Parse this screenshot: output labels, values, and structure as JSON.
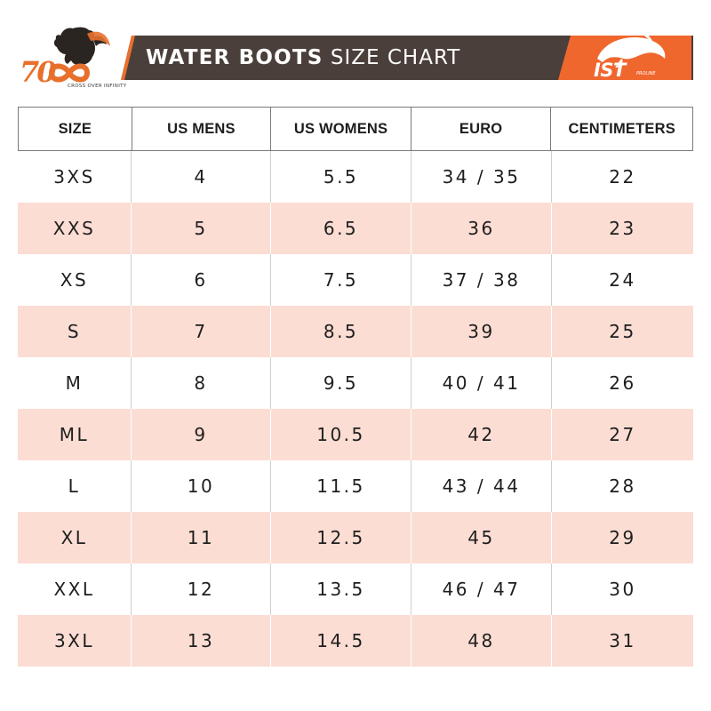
{
  "header": {
    "brand_left": {
      "logo_text": "70",
      "tagline": "CROSS OVER INFINITY",
      "accent_color": "#e8702d"
    },
    "banner": {
      "title_bold": "WATER BOOTS",
      "title_light": "SIZE CHART",
      "background_color": "#4a3f3a"
    },
    "brand_right": {
      "logo_text": "IST",
      "sub_text": "PROLINE",
      "background_color": "#f0672e",
      "icon": "dolphin-icon"
    }
  },
  "table": {
    "columns": [
      "SIZE",
      "US MENS",
      "US WOMENS",
      "EURO",
      "CENTIMETERS"
    ],
    "rows": [
      [
        "3XS",
        "4",
        "5.5",
        "34 / 35",
        "22"
      ],
      [
        "XXS",
        "5",
        "6.5",
        "36",
        "23"
      ],
      [
        "XS",
        "6",
        "7.5",
        "37 / 38",
        "24"
      ],
      [
        "S",
        "7",
        "8.5",
        "39",
        "25"
      ],
      [
        "M",
        "8",
        "9.5",
        "40 / 41",
        "26"
      ],
      [
        "ML",
        "9",
        "10.5",
        "42",
        "27"
      ],
      [
        "L",
        "10",
        "11.5",
        "43 / 44",
        "28"
      ],
      [
        "XL",
        "11",
        "12.5",
        "45",
        "29"
      ],
      [
        "XXL",
        "12",
        "13.5",
        "46 / 47",
        "30"
      ],
      [
        "3XL",
        "13",
        "14.5",
        "48",
        "31"
      ]
    ],
    "stripe_color": "#fbddd3"
  }
}
